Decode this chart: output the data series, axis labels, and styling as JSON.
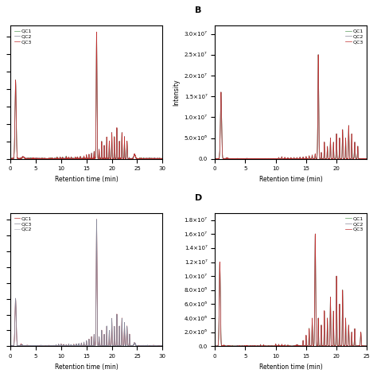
{
  "c_green": "#5a9a5a",
  "c_gray": "#888899",
  "c_red": "#c03030",
  "lw": 0.5,
  "fontsize_tick": 5,
  "fontsize_label": 5.5,
  "fontsize_legend": 4.5,
  "fontsize_panel": 8,
  "panel_A": {
    "xlim": [
      0,
      30
    ],
    "xticks": [
      0,
      5,
      10,
      15,
      20,
      25,
      30
    ],
    "legend": [
      "QC1",
      "QC2",
      "QC3"
    ],
    "legend_loc": "upper left",
    "xlabel": "Retention time (min)",
    "ylabel": ""
  },
  "panel_B": {
    "xlim": [
      0,
      25
    ],
    "ylim": [
      0,
      32000000.0
    ],
    "xticks": [
      0,
      5,
      10,
      15,
      20
    ],
    "yticks": [
      0.0,
      5000000.0,
      10000000.0,
      15000000.0,
      20000000.0,
      25000000.0,
      30000000.0
    ],
    "ytick_labels": [
      "0.0",
      "5.0×10⁶",
      "1.0×10⁷",
      "1.5×10⁷",
      "2.0×10⁷",
      "2.5×10⁷",
      "3.0×10⁷"
    ],
    "legend": [
      "QC1",
      "QC2",
      "QC3"
    ],
    "legend_loc": "upper right",
    "xlabel": "Retention time (min)",
    "ylabel": "Intensity",
    "label": "B"
  },
  "panel_C": {
    "xlim": [
      0,
      30
    ],
    "xticks": [
      0,
      5,
      10,
      15,
      20,
      25,
      30
    ],
    "legend": [
      "QC1",
      "QC3",
      "QC2"
    ],
    "legend_colors_idx": [
      2,
      1,
      1
    ],
    "legend_loc": "upper left",
    "xlabel": "Retention time (min)",
    "ylabel": ""
  },
  "panel_D": {
    "xlim": [
      0,
      25
    ],
    "ylim": [
      0,
      19000000.0
    ],
    "xticks": [
      0,
      5,
      10,
      15,
      20,
      25
    ],
    "yticks": [
      0.0,
      2000000.0,
      4000000.0,
      6000000.0,
      8000000.0,
      10000000.0,
      12000000.0,
      14000000.0,
      16000000.0,
      18000000.0
    ],
    "ytick_labels": [
      "0.0",
      "2.0×10⁶",
      "4.0×10⁶",
      "6.0×10⁶",
      "8.0×10⁶",
      "1.0×10⁷",
      "1.2×10⁷",
      "1.4×10⁷",
      "1.6×10⁷",
      "1.8×10⁷"
    ],
    "legend": [
      "QC1",
      "QC2",
      "QC3"
    ],
    "legend_loc": "upper right",
    "xlabel": "Retention time (min)",
    "ylabel": "",
    "label": "D"
  }
}
